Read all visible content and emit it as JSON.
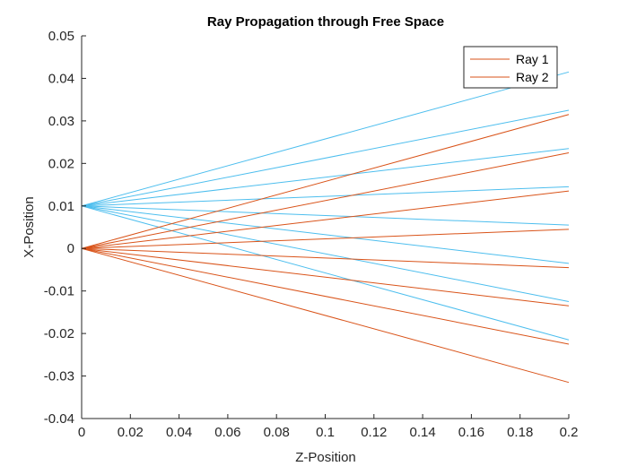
{
  "chart_data": {
    "type": "line",
    "title": "Ray Propagation through Free Space",
    "xlabel": "Z-Position",
    "ylabel": "X-Position",
    "xlim": [
      0,
      0.2
    ],
    "ylim": [
      -0.04,
      0.05
    ],
    "xticks": [
      0,
      0.02,
      0.04,
      0.06,
      0.08,
      0.1,
      0.12,
      0.14,
      0.16,
      0.18,
      0.2
    ],
    "xtick_labels": [
      "0",
      "0.02",
      "0.04",
      "0.06",
      "0.08",
      "0.1",
      "0.12",
      "0.14",
      "0.16",
      "0.18",
      "0.2"
    ],
    "yticks": [
      -0.04,
      -0.03,
      -0.02,
      -0.01,
      0,
      0.01,
      0.02,
      0.03,
      0.04,
      0.05
    ],
    "ytick_labels": [
      "-0.04",
      "-0.03",
      "-0.02",
      "-0.01",
      "0",
      "0.01",
      "0.02",
      "0.03",
      "0.04",
      "0.05"
    ],
    "grid": false,
    "legend_position": "top-right",
    "series": [
      {
        "name": "Ray 1",
        "color": "#d95319",
        "rays": [
          {
            "x": [
              0,
              0.2
            ],
            "y": [
              0,
              0.0315
            ]
          },
          {
            "x": [
              0,
              0.2
            ],
            "y": [
              0,
              0.0225
            ]
          },
          {
            "x": [
              0,
              0.2
            ],
            "y": [
              0,
              0.0135
            ]
          },
          {
            "x": [
              0,
              0.2
            ],
            "y": [
              0,
              0.0045
            ]
          },
          {
            "x": [
              0,
              0.2
            ],
            "y": [
              0,
              -0.0045
            ]
          },
          {
            "x": [
              0,
              0.2
            ],
            "y": [
              0,
              -0.0135
            ]
          },
          {
            "x": [
              0,
              0.2
            ],
            "y": [
              0,
              -0.0225
            ]
          },
          {
            "x": [
              0,
              0.2
            ],
            "y": [
              0,
              -0.0315
            ]
          }
        ]
      },
      {
        "name": "Ray 2",
        "color": "#4dbeee",
        "rays": [
          {
            "x": [
              0,
              0.2
            ],
            "y": [
              0.01,
              0.0415
            ]
          },
          {
            "x": [
              0,
              0.2
            ],
            "y": [
              0.01,
              0.0325
            ]
          },
          {
            "x": [
              0,
              0.2
            ],
            "y": [
              0.01,
              0.0235
            ]
          },
          {
            "x": [
              0,
              0.2
            ],
            "y": [
              0.01,
              0.0145
            ]
          },
          {
            "x": [
              0,
              0.2
            ],
            "y": [
              0.01,
              0.0055
            ]
          },
          {
            "x": [
              0,
              0.2
            ],
            "y": [
              0.01,
              -0.0035
            ]
          },
          {
            "x": [
              0,
              0.2
            ],
            "y": [
              0.01,
              -0.0125
            ]
          },
          {
            "x": [
              0,
              0.2
            ],
            "y": [
              0.01,
              -0.0215
            ]
          }
        ]
      }
    ],
    "legend": [
      {
        "label": "Ray 1",
        "color": "#d95319"
      },
      {
        "label": "Ray 2",
        "color": "#d95319"
      }
    ]
  }
}
